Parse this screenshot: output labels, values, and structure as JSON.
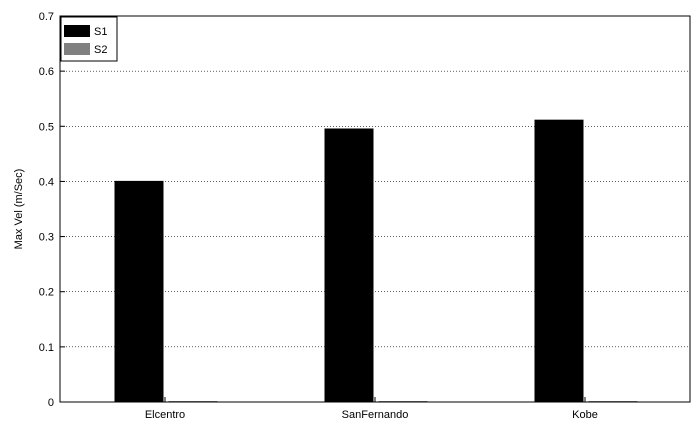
{
  "chart_data": {
    "type": "bar",
    "categories": [
      "Elcentro",
      "SanFernando",
      "Kobe"
    ],
    "series": [
      {
        "name": "S1",
        "values": [
          0.401,
          0.496,
          0.512
        ],
        "color": "#000000"
      },
      {
        "name": "S2",
        "values": [
          0.001,
          0.001,
          0.001
        ],
        "color": "#808080"
      }
    ],
    "title": "",
    "xlabel": "",
    "ylabel": "Max Vel (m/Sec)",
    "ylim": [
      0,
      0.7
    ],
    "yticks": [
      "0",
      "0.1",
      "0.2",
      "0.3",
      "0.4",
      "0.5",
      "0.6",
      "0.7"
    ],
    "grid": "horizontal dotted",
    "legend_position": "top-left"
  }
}
